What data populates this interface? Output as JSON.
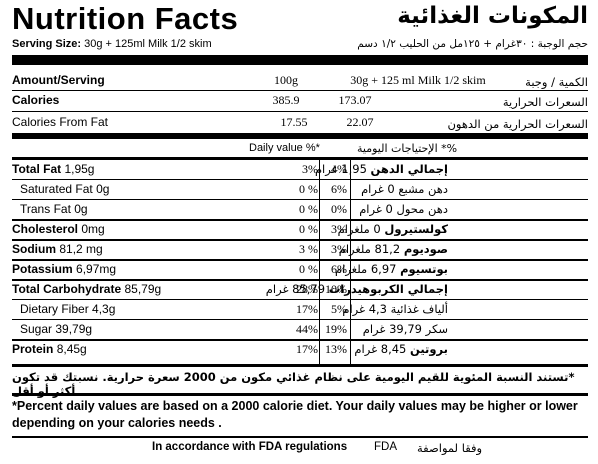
{
  "title": {
    "en": "Nutrition Facts",
    "ar": "المكونات الغذائية"
  },
  "serving": {
    "en_label": "Serving Size:",
    "en_value": "30g + 125ml Milk 1/2 skim",
    "ar": "حجم الوجبة : ٣٠غرام + ١٢٥مل من الحليب ١/٢ دسم"
  },
  "header": {
    "amount_en": "Amount/Serving",
    "col1": "100g",
    "col2": "30g + 125 ml Milk 1/2 skim",
    "amount_ar": "الكمية / وجبة"
  },
  "calories": {
    "en": "Calories",
    "v1": "385.9",
    "v2": "173.07",
    "ar": "السعرات الحرارية"
  },
  "calories_fat": {
    "en": "Calories From Fat",
    "v1": "17.55",
    "v2": "22.07",
    "ar": "السعرات الحرارية من الدهون"
  },
  "dv_header": {
    "en": "Daily value %*",
    "ar": "%* الإحتياجات اليومية"
  },
  "nutrients": [
    {
      "name": "Total Fat",
      "amount": "1,95g",
      "bold": true,
      "indent": false,
      "p1": "3%",
      "p2": "4%",
      "ar_name": "إجمالي الدهن",
      "ar_amount": "1,95 غرام"
    },
    {
      "name": "Saturated Fat",
      "amount": "0g",
      "bold": false,
      "indent": true,
      "p1": "0 %",
      "p2": "6%",
      "ar_name": "دهن مشبع",
      "ar_amount": "0 غرام"
    },
    {
      "name": "Trans Fat",
      "amount": "0g",
      "bold": false,
      "indent": true,
      "p1": "0 %",
      "p2": "0%",
      "ar_name": "دهن محول",
      "ar_amount": "0 غرام"
    },
    {
      "name": "Cholesterol",
      "amount": "0mg",
      "bold": true,
      "indent": false,
      "p1": "0 %",
      "p2": "3%",
      "ar_name": "كولستيرول",
      "ar_amount": "0 ملغرام"
    },
    {
      "name": "Sodium",
      "amount": "81,2  mg",
      "bold": true,
      "indent": false,
      "p1": "3 %",
      "p2": "3%",
      "ar_name": "صوديوم",
      "ar_amount": "81,2 ملغرام"
    },
    {
      "name": "Potassium",
      "amount": "6,97mg",
      "bold": true,
      "indent": false,
      "p1": "0 %",
      "p2": "6%",
      "ar_name": "بوتسيوم",
      "ar_amount": "6,97 ملغرام"
    },
    {
      "name": "Total Carbohydrate",
      "amount": "85,79g",
      "bold": true,
      "indent": false,
      "p1": "28%",
      "p2": "10%",
      "ar_name": "إجمالي الكربوهيدرات",
      "ar_amount": "85,79 غرام"
    },
    {
      "name": "Dietary Fiber",
      "amount": "4,3g",
      "bold": false,
      "indent": true,
      "p1": "17%",
      "p2": "5%",
      "ar_name": "ألياف غذائية",
      "ar_amount": "4,3 غرام"
    },
    {
      "name": "Sugar",
      "amount": "39,79g",
      "bold": false,
      "indent": true,
      "p1": "44%",
      "p2": "19%",
      "ar_name": "سكر",
      "ar_amount": "39,79 غرام"
    },
    {
      "name": "Protein",
      "amount": "8,45g",
      "bold": true,
      "indent": false,
      "p1": "17%",
      "p2": "13%",
      "ar_name": "بروتين",
      "ar_amount": "8,45 غرام"
    }
  ],
  "footnote_ar": "*تستند النسبة المئوية للقيم اليومية على نظام غذائي مكون من 2000 سعرة حرارية. نسبتك قد تكون أكثر أو أقل",
  "footnote_en": "*Percent daily values are based on a 2000 calorie diet. Your daily values may be higher or lower depending on your calories needs .",
  "fda": {
    "en": "In accordance with FDA regulations",
    "code": "FDA",
    "ar": "وفقا لمواصفة"
  }
}
